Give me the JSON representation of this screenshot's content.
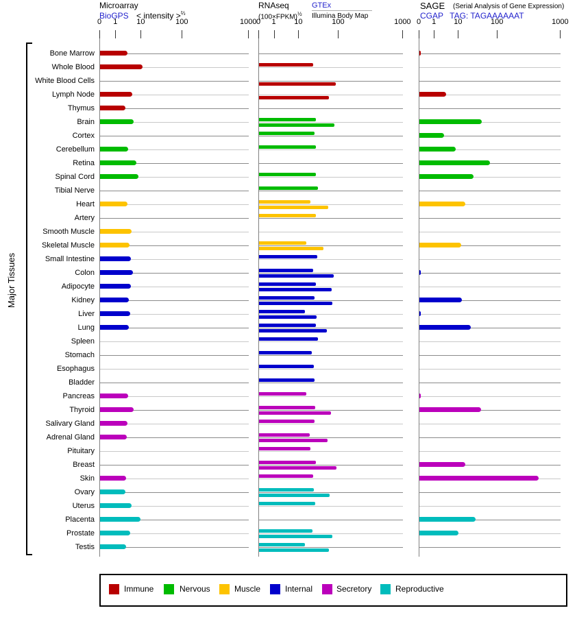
{
  "panels": {
    "microarray": {
      "title": "Microarray",
      "link_label": "BioGPS",
      "scale_label": "< intensity >",
      "scale_exponent": "⅔"
    },
    "rnaseq": {
      "title": "RNAseq",
      "scale_label": "(100×FPKM)",
      "scale_exponent": "½",
      "link_label": "GTEx",
      "secondary_label": "Illumina Body Map"
    },
    "sage": {
      "title": "SAGE",
      "subtitle": "(Serial Analysis of Gene Expression)",
      "link_label": "CGAP",
      "tag_label": "TAG: TAGAAAAAAT"
    }
  },
  "side_label": "Major Tissues",
  "axis_ticks": [
    0,
    1,
    10,
    100,
    1000
  ],
  "link_color": "#2222cc",
  "legend": [
    {
      "key": "immune",
      "label": "Immune",
      "color": "#b80000"
    },
    {
      "key": "nervous",
      "label": "Nervous",
      "color": "#00bb00"
    },
    {
      "key": "muscle",
      "label": "Muscle",
      "color": "#fdc300"
    },
    {
      "key": "internal",
      "label": "Internal",
      "color": "#0000cc"
    },
    {
      "key": "secretory",
      "label": "Secretory",
      "color": "#bb00bb"
    },
    {
      "key": "reproductive",
      "label": "Reproductive",
      "color": "#00bcbc"
    }
  ],
  "chart_data": {
    "type": "bar",
    "orientation": "horizontal",
    "axis_scale": "nonlinear, ticks at 0 / 1 / 10 / 100 / 1000",
    "axis_range": [
      0,
      1000
    ],
    "categories": [
      "Bone Marrow",
      "Whole Blood",
      "White Blood Cells",
      "Lymph Node",
      "Thymus",
      "Brain",
      "Cortex",
      "Cerebellum",
      "Retina",
      "Spinal Cord",
      "Tibial Nerve",
      "Heart",
      "Artery",
      "Smooth Muscle",
      "Skeletal Muscle",
      "Small Intestine",
      "Colon",
      "Adipocyte",
      "Kidney",
      "Liver",
      "Lung",
      "Spleen",
      "Stomach",
      "Esophagus",
      "Bladder",
      "Pancreas",
      "Thyroid",
      "Salivary Gland",
      "Adrenal Gland",
      "Pituitary",
      "Breast",
      "Skin",
      "Ovary",
      "Uterus",
      "Placenta",
      "Prostate",
      "Testis"
    ],
    "category_groups": [
      "immune",
      "immune",
      "immune",
      "immune",
      "immune",
      "nervous",
      "nervous",
      "nervous",
      "nervous",
      "nervous",
      "nervous",
      "muscle",
      "muscle",
      "muscle",
      "muscle",
      "internal",
      "internal",
      "internal",
      "internal",
      "internal",
      "internal",
      "internal",
      "internal",
      "internal",
      "internal",
      "secretory",
      "secretory",
      "secretory",
      "secretory",
      "secretory",
      "secretory",
      "secretory",
      "reproductive",
      "reproductive",
      "reproductive",
      "reproductive",
      "reproductive"
    ],
    "series": [
      {
        "name": "Microarray BioGPS intensity",
        "values": [
          3.2,
          10.8,
          null,
          4.9,
          2.7,
          5.5,
          null,
          3.4,
          7.0,
          8.1,
          null,
          3.2,
          null,
          4.6,
          3.8,
          4.5,
          5.3,
          4.5,
          3.6,
          4.2,
          3.6,
          null,
          null,
          null,
          null,
          3.4,
          5.5,
          3.3,
          3.1,
          null,
          null,
          2.9,
          2.6,
          4.6,
          9.2,
          4.2,
          2.8
        ]
      },
      {
        "name": "RNAseq GTEx",
        "values": [
          null,
          26,
          null,
          null,
          null,
          30,
          28,
          31,
          null,
          31,
          34,
          22,
          31,
          null,
          17,
          33,
          26,
          31,
          28,
          15,
          31,
          34,
          24,
          27,
          28,
          17,
          29,
          28,
          21,
          22,
          30,
          26,
          27,
          29,
          null,
          25,
          15
        ]
      },
      {
        "name": "RNAseq Illumina Body Map",
        "values": [
          null,
          null,
          87,
          62,
          null,
          81,
          null,
          null,
          null,
          null,
          null,
          60,
          null,
          null,
          46,
          null,
          79,
          71,
          74,
          32,
          55,
          null,
          null,
          null,
          null,
          null,
          69,
          null,
          57,
          null,
          89,
          null,
          64,
          null,
          null,
          74,
          62
        ]
      },
      {
        "name": "SAGE CGAP TAG: TAGAAAAAAT",
        "values": [
          0.1,
          null,
          null,
          3.5,
          null,
          44,
          2.8,
          8.1,
          68,
          28,
          null,
          16,
          null,
          null,
          12,
          null,
          0.1,
          null,
          12.6,
          0.1,
          23,
          null,
          null,
          null,
          null,
          0.1,
          42,
          null,
          null,
          null,
          16.5,
          500,
          null,
          null,
          31,
          10,
          null
        ]
      }
    ]
  }
}
